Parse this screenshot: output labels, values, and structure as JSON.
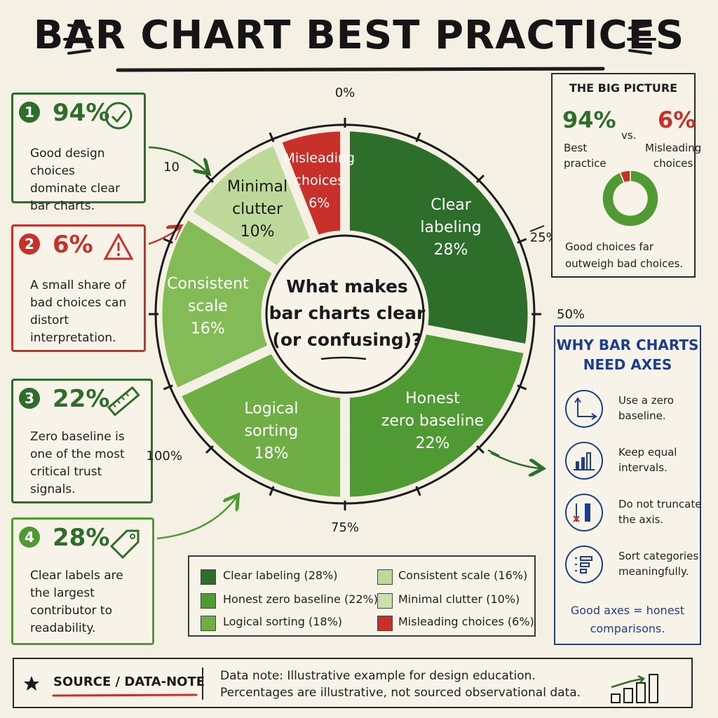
{
  "title": "BAR CHART BEST PRACTICES",
  "center_text": [
    "What makes",
    "bar charts clear",
    "(or confusing)?"
  ],
  "chart_data": {
    "type": "pie",
    "title": "BAR CHART BEST PRACTICES",
    "categories": [
      "Clear labeling",
      "Honest zero baseline",
      "Logical sorting",
      "Consistent scale",
      "Minimal clutter",
      "Misleading choices"
    ],
    "values": [
      28,
      22,
      18,
      16,
      10,
      6
    ],
    "colors": [
      "#2d6e2a",
      "#4f9a33",
      "#6fae45",
      "#83bc57",
      "#bcd99a",
      "#c8302a"
    ],
    "slice_labels": [
      [
        "Clear",
        "labeling",
        "28%"
      ],
      [
        "Honest",
        "zero baseline",
        "22%"
      ],
      [
        "Logical",
        "sorting",
        "18%"
      ],
      [
        "Consistent",
        "scale",
        "16%"
      ],
      [
        "Minimal",
        "clutter",
        "10%"
      ],
      [
        "Misleading",
        "choices",
        "6%"
      ]
    ],
    "ticks": [
      "0%",
      "25%",
      "50%",
      "75%",
      "100%",
      "10"
    ],
    "legend": [
      "Clear labeling (28%)",
      "Honest zero baseline (22%)",
      "Logical sorting (18%)",
      "Consistent scale (16%)",
      "Minimal clutter (10%)",
      "Misleading choices (6%)"
    ]
  },
  "left_cards": [
    {
      "num": "1",
      "pct": "94%",
      "text": "Good design choices\ndominate clear\nbar charts."
    },
    {
      "num": "2",
      "pct": "6%",
      "text": "A small share of\nbad choices can\ndistort\ninterpretation."
    },
    {
      "num": "3",
      "pct": "22%",
      "text": "Zero baseline is\none of the most\ncritical trust\nsignals."
    },
    {
      "num": "4",
      "pct": "28%",
      "text": "Clear labels are\nthe largest\ncontributor to\nreadability."
    }
  ],
  "big_picture": {
    "title": "THE BIG PICTURE",
    "left_pct": "94%",
    "left_label": "Best\npractice",
    "vs": "vs.",
    "right_pct": "6%",
    "right_label": "Misleading\nchoices",
    "footer": "Good choices far\noutweigh bad choices.",
    "values": [
      94,
      6
    ]
  },
  "axes_panel": {
    "title": "WHY BAR CHARTS\nNEED AXES",
    "items": [
      "Use a zero\nbaseline.",
      "Keep equal\nintervals.",
      "Do not truncate\nthe axis.",
      "Sort categories\nmeaningfully."
    ],
    "footer": "Good axes = honest\ncomparisons."
  },
  "source": {
    "label": "SOURCE / DATA-NOTE",
    "note_line1": "Data note: Illustrative example for design education.",
    "note_line2": "Percentages are illustrative, not sourced observational data."
  },
  "colors": {
    "dark_green": "#2d6e2a",
    "red": "#c8302a",
    "blue": "#1d3f8a",
    "background": "#f4f0e4"
  }
}
